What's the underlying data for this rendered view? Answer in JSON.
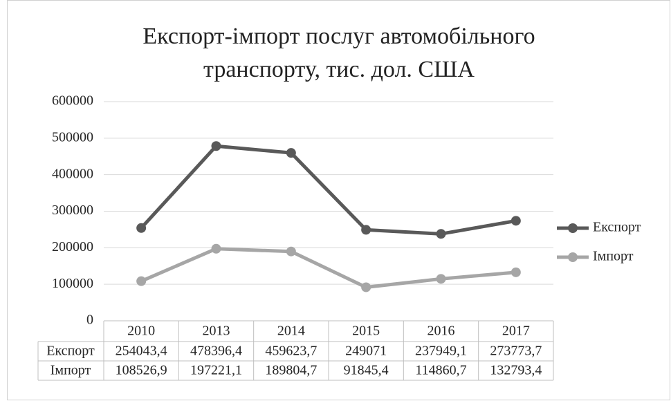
{
  "chart_data": {
    "type": "line",
    "title": [
      "Експорт-імпорт послуг автомобільного",
      "транспорту, тис. дол. США"
    ],
    "categories": [
      "2010",
      "2013",
      "2014",
      "2015",
      "2016",
      "2017"
    ],
    "series": [
      {
        "name": "Експорт",
        "color": "#595959",
        "values": [
          254043.4,
          478396.4,
          459623.7,
          249071,
          237949.1,
          273773.7
        ],
        "value_labels": [
          "254043,4",
          "478396,4",
          "459623,7",
          "249071",
          "237949,1",
          "273773,7"
        ]
      },
      {
        "name": "Імпорт",
        "color": "#a6a6a6",
        "values": [
          108526.9,
          197221.1,
          189804.7,
          91845.4,
          114860.7,
          132793.4
        ],
        "value_labels": [
          "108526,9",
          "197221,1",
          "189804,7",
          "91845,4",
          "114860,7",
          "132793,4"
        ]
      }
    ],
    "ylim": [
      0,
      600000
    ],
    "yticks": [
      0,
      100000,
      200000,
      300000,
      400000,
      500000,
      600000
    ],
    "grid": true,
    "legend": "right"
  }
}
